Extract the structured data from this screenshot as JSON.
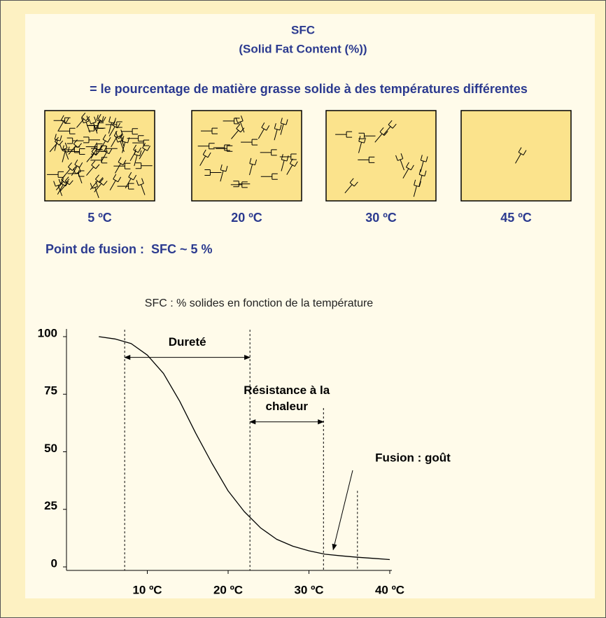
{
  "header": {
    "title": "SFC",
    "subtitle": "(Solid Fat Content (%))",
    "definition": "= le pourcentage de matière grasse solide à des températures différentes"
  },
  "panels": [
    {
      "label": "5 ºC"
    },
    {
      "label": "20 ºC"
    },
    {
      "label": "30 ºC"
    },
    {
      "label": "45 ºC"
    }
  ],
  "melting_point": "Point de fusion :  SFC ~ 5 %",
  "chart_data": {
    "type": "line",
    "title": "SFC : % solides en fonction de la température",
    "x": [
      4,
      6,
      8,
      10,
      12,
      14,
      16,
      18,
      20,
      22,
      24,
      26,
      28,
      30,
      32,
      34,
      36,
      38,
      40
    ],
    "values": [
      100,
      99,
      97,
      92,
      84,
      72,
      58,
      45,
      33,
      24,
      17,
      12,
      9,
      7,
      5.5,
      4.8,
      4.2,
      3.7,
      3.2
    ],
    "color": "#000000",
    "xlim": [
      0,
      40
    ],
    "ylim": [
      0,
      100
    ],
    "xticks": [
      {
        "value": 10,
        "label": "10 ºC"
      },
      {
        "value": 20,
        "label": "20 ºC"
      },
      {
        "value": 30,
        "label": "30 ºC"
      },
      {
        "value": 40,
        "label": "40 ºC"
      }
    ],
    "yticks": [
      0,
      25,
      50,
      75,
      100
    ],
    "dividers": [
      {
        "x": 7.2,
        "top": 103
      },
      {
        "x": 22.7,
        "top": 103
      },
      {
        "x": 31.8,
        "top": 69
      },
      {
        "x": 36,
        "top": 33
      }
    ],
    "annotations": [
      {
        "text": [
          "Dureté"
        ],
        "from": 7.2,
        "to": 22.7,
        "at": 91
      },
      {
        "text": [
          "Résistance à la",
          "chaleur"
        ],
        "from": 22.7,
        "to": 31.8,
        "at": 63
      },
      {
        "text": [
          "Fusion : goût"
        ],
        "points_to": [
          33,
          5
        ]
      }
    ]
  }
}
